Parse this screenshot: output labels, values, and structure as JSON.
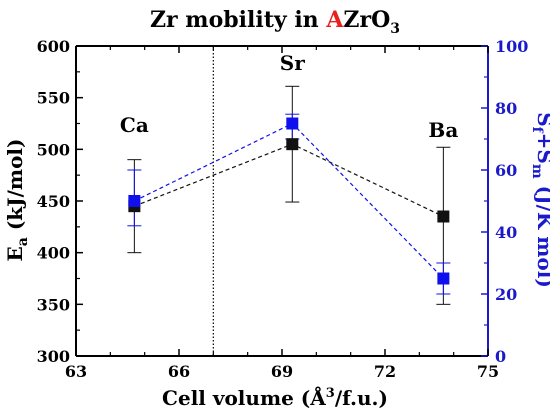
{
  "chart_data": {
    "type": "scatter",
    "title": {
      "prefix": "Zr mobility in ",
      "highlight": "A",
      "suffix": "ZrO",
      "subscript": "3",
      "highlight_color": "#e8201e"
    },
    "xlabel": {
      "before": "Cell volume (Å",
      "sup": "3",
      "after": "/f.u.)"
    },
    "ylabel_left": {
      "main": "E",
      "sub": "a",
      "rest": " (kJ/mol)"
    },
    "ylabel_right": {
      "main": "S",
      "sub1": "f",
      "plus": "+S",
      "sub2": "m",
      "rest": " (J/K mol)"
    },
    "xlim": [
      63,
      75
    ],
    "ylim_left": [
      300,
      600
    ],
    "ylim_right": [
      0,
      100
    ],
    "x_ticks": [
      "63",
      "66",
      "69",
      "72",
      "75"
    ],
    "y_ticks_left": [
      "300",
      "350",
      "400",
      "450",
      "500",
      "550",
      "600"
    ],
    "y_ticks_right": [
      "0",
      "20",
      "40",
      "60",
      "80",
      "100"
    ],
    "vline_x": 67,
    "series": [
      {
        "axis": "left",
        "color": "#111111",
        "x": [
          64.7,
          69.3,
          73.7
        ],
        "y": [
          445,
          505,
          435
        ],
        "err_low": [
          400,
          449,
          350
        ],
        "err_high": [
          490,
          561,
          502
        ]
      },
      {
        "axis": "right",
        "color": "#1010ee",
        "x": [
          64.7,
          69.3,
          73.7
        ],
        "y": [
          50,
          75,
          25
        ],
        "err_low": [
          42,
          70,
          20
        ],
        "err_high": [
          60,
          78,
          30
        ]
      }
    ],
    "annotations": [
      {
        "text": "Ca",
        "x": 64.7,
        "y": 517
      },
      {
        "text": "Sr",
        "x": 69.3,
        "y": 577
      },
      {
        "text": "Ba",
        "x": 73.7,
        "y": 512
      }
    ]
  }
}
